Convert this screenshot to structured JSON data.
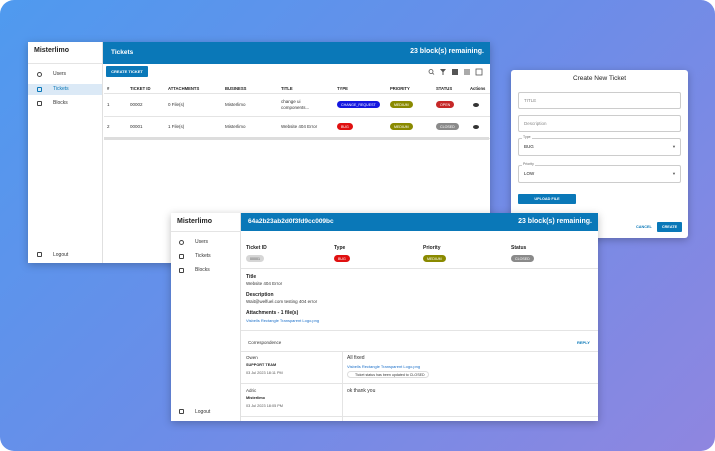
{
  "back": {
    "brand": "Misterlimo",
    "nav": [
      "Users",
      "Tickets",
      "Blocks"
    ],
    "logout": "Logout",
    "title": "Tickets",
    "remaining": "23 block(s) remaining.",
    "create_button": "CREATE TICKET",
    "table": {
      "headers": [
        "#",
        "TICKET ID",
        "ATTACHMENTS",
        "BUSINESS",
        "TITLE",
        "TYPE",
        "PRIORITY",
        "STATUS",
        "Actions"
      ],
      "rows": [
        [
          "1",
          "00002",
          "0 File(s)",
          "Misterlimo",
          "change ui components...",
          "CHANGE_REQUEST",
          "MEDIUM",
          "OPEN"
        ],
        [
          "2",
          "00001",
          "1 File(s)",
          "Misterlimo",
          "Website 404 Error",
          "BUG",
          "MEDIUM",
          "CLOSED"
        ]
      ]
    }
  },
  "modal": {
    "title": "Create New Ticket",
    "title_placeholder": "TITLE",
    "description_placeholder": "Description",
    "type_label": "Type",
    "type_value": "BUG",
    "priority_label": "Priority",
    "priority_value": "LOW",
    "upload_button": "UPLOAD FILE",
    "cancel": "CANCEL",
    "create": "CREATE"
  },
  "detail": {
    "brand": "Misterlimo",
    "nav": [
      "Users",
      "Tickets",
      "Blocks"
    ],
    "logout": "Logout",
    "ticket_hash": "64a2b23ab2d0f3fd9cc009bc",
    "remaining": "23 block(s) remaining.",
    "fields": [
      {
        "label": "Ticket ID",
        "value": "00001"
      },
      {
        "label": "Type",
        "value": "BUG"
      },
      {
        "label": "Priority",
        "value": "MEDIUM"
      },
      {
        "label": "Status",
        "value": "CLOSED"
      }
    ],
    "title_label": "Title",
    "title_value": "Website 404 Error",
    "description_label": "Description",
    "description_value": "Wait@welfuel.com testing 404 error",
    "attachments_label": "Attachments - 1 file(s)",
    "attachment": "Visbells Rectangle Transparent Logo.png",
    "correspondence": "Correspondence",
    "reply": "REPLY",
    "messages": [
      {
        "name": "Owen",
        "role": "SUPPORT TEAM",
        "date": "03 Jul 2023 18:11 PM",
        "text": "All fixed",
        "attachment": "Visbells Rectangle Transparent Logo.png",
        "notice": "Ticket status has been updated to CLOSED"
      },
      {
        "name": "Adric",
        "role": "Misterlimo",
        "date": "03 Jul 2023 18:05 PM",
        "text": "ok thank you"
      }
    ]
  }
}
